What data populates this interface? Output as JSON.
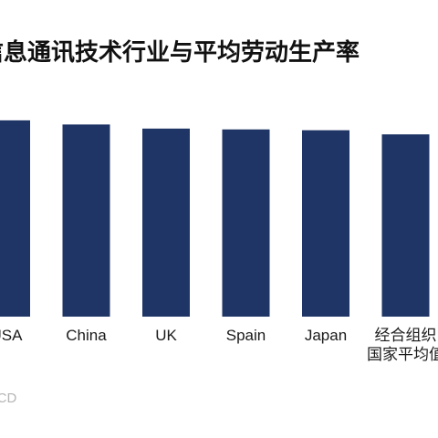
{
  "chart_data": {
    "type": "bar",
    "title": "信息通讯技术行业与平均劳动生产率",
    "categories": [
      "USA",
      "China",
      "UK",
      "Spain",
      "Japan",
      "经合组织国家平均值"
    ],
    "category_lines": [
      [
        "USA"
      ],
      [
        "China"
      ],
      [
        "UK"
      ],
      [
        "Spain"
      ],
      [
        "Japan"
      ],
      [
        "经合组织",
        "国家平均值"
      ]
    ],
    "values": [
      2.38,
      2.33,
      2.28,
      2.27,
      2.26,
      2.21
    ],
    "ylim": [
      0,
      2.6
    ],
    "grid": false,
    "legend": "none",
    "bar_color": "#1f3566",
    "source": "OECD"
  }
}
